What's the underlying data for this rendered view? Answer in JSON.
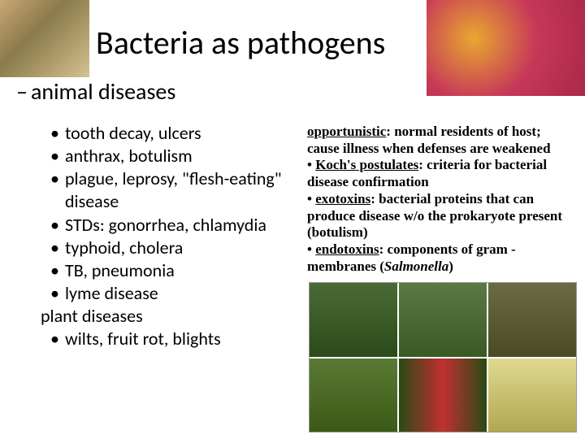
{
  "title": "Bacteria as pathogens",
  "subtitle_dash": "–",
  "subtitle": "animal diseases",
  "left_bullets": [
    "tooth decay, ulcers",
    "anthrax, botulism",
    "plague, leprosy, \"flesh-eating\" disease",
    "STDs: gonorrhea, chlamydia",
    "typhoid, cholera",
    "TB, pneumonia",
    "lyme disease"
  ],
  "left_plain": "plant diseases",
  "left_bullets2": [
    "wilts, fruit rot, blights"
  ],
  "right": {
    "t1": "opportunistic",
    "d1": ": normal residents of host; cause illness when defenses are weakened",
    "b2": "• ",
    "t2": "Koch's postulates",
    "d2": ": criteria for bacterial disease confirmation",
    "b3": "• ",
    "t3": "exotoxins",
    "d3": ": bacterial proteins that can produce disease w/o the prokaryote present (botulism)",
    "b4": "• ",
    "t4": "endotoxins",
    "d4a": ": components of gram - membranes (",
    "d4i": "Salmonella",
    "d4b": ")"
  },
  "colors": {
    "background": "#ffffff",
    "text": "#000000"
  }
}
